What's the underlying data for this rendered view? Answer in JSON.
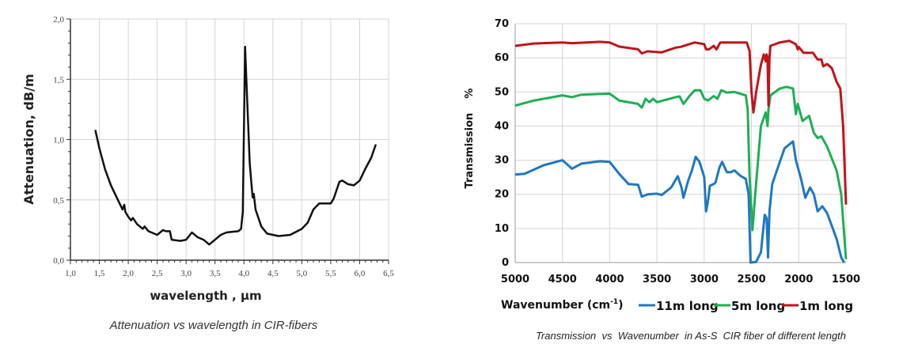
{
  "chart_data": [
    {
      "type": "line",
      "title": "",
      "caption": "Attenuation vs wavelength in CIR-fibers",
      "xlabel": "wavelength , µm",
      "ylabel": "Attenuation, dB/m",
      "xlim": [
        1.0,
        6.5
      ],
      "ylim": [
        0.0,
        2.0
      ],
      "xticks": [
        "1,0",
        "1,5",
        "2,0",
        "2,5",
        "3,0",
        "3,5",
        "4,0",
        "4,5",
        "5,0",
        "5,5",
        "6,0",
        "6,5"
      ],
      "yticks": [
        "0,0",
        "0,5",
        "1,0",
        "1,5",
        "2,0"
      ],
      "grid": true,
      "series": [
        {
          "name": "attenuation",
          "color": "#111111",
          "x": [
            1.43,
            1.5,
            1.6,
            1.7,
            1.8,
            1.9,
            1.93,
            1.95,
            2.0,
            2.05,
            2.08,
            2.15,
            2.25,
            2.28,
            2.35,
            2.5,
            2.6,
            2.65,
            2.72,
            2.75,
            2.9,
            3.0,
            3.1,
            3.2,
            3.3,
            3.4,
            3.5,
            3.6,
            3.7,
            3.9,
            3.95,
            3.98,
            4.02,
            4.05,
            4.1,
            4.15,
            4.17,
            4.2,
            4.3,
            4.4,
            4.6,
            4.8,
            5.0,
            5.1,
            5.2,
            5.3,
            5.4,
            5.5,
            5.55,
            5.65,
            5.7,
            5.8,
            5.9,
            6.0,
            6.1,
            6.2,
            6.28
          ],
          "y": [
            1.08,
            0.93,
            0.75,
            0.62,
            0.52,
            0.42,
            0.46,
            0.4,
            0.36,
            0.33,
            0.35,
            0.3,
            0.26,
            0.28,
            0.24,
            0.21,
            0.25,
            0.24,
            0.24,
            0.17,
            0.16,
            0.17,
            0.23,
            0.19,
            0.17,
            0.13,
            0.17,
            0.21,
            0.23,
            0.24,
            0.26,
            0.4,
            1.77,
            1.4,
            0.8,
            0.52,
            0.55,
            0.42,
            0.28,
            0.22,
            0.2,
            0.21,
            0.26,
            0.31,
            0.42,
            0.47,
            0.47,
            0.47,
            0.51,
            0.65,
            0.66,
            0.63,
            0.62,
            0.66,
            0.76,
            0.85,
            0.96
          ]
        }
      ]
    },
    {
      "type": "line",
      "title": "",
      "caption": "Transmission  vs  Wavenumber  in As-S  CIR fiber of different length",
      "xlabel": "Wavenumber (cm",
      "xlabel_sup": "-1",
      "xlabel_end": ")",
      "ylabel": "Transmission    %",
      "xlim": [
        5000,
        1500
      ],
      "ylim": [
        0,
        70
      ],
      "xticks": [
        "5000",
        "4500",
        "4000",
        "3500",
        "3000",
        "2500",
        "2000",
        "1500"
      ],
      "yticks": [
        "0",
        "10",
        "20",
        "30",
        "40",
        "50",
        "60",
        "70"
      ],
      "grid": true,
      "legend": "bottom",
      "series": [
        {
          "name": "11m long",
          "color": "#1f78c1",
          "x": [
            5000,
            4900,
            4700,
            4500,
            4430,
            4400,
            4300,
            4100,
            4000,
            3900,
            3800,
            3700,
            3660,
            3600,
            3500,
            3450,
            3350,
            3280,
            3240,
            3220,
            3170,
            3130,
            3090,
            3050,
            3000,
            2980,
            2960,
            2940,
            2900,
            2880,
            2840,
            2810,
            2760,
            2720,
            2680,
            2620,
            2560,
            2530,
            2510,
            2450,
            2400,
            2360,
            2340,
            2325,
            2310,
            2280,
            2200,
            2150,
            2060,
            2030,
            1980,
            1930,
            1880,
            1840,
            1800,
            1750,
            1700,
            1600,
            1550,
            1520
          ],
          "y": [
            25.8,
            26,
            28.5,
            30,
            28.3,
            27.5,
            29,
            29.7,
            29.5,
            26,
            23,
            22.8,
            19.3,
            20,
            20.2,
            19.8,
            22,
            25.3,
            22,
            19,
            24,
            27,
            31,
            29.5,
            25,
            15,
            18,
            22.5,
            23,
            23.5,
            27.8,
            29.5,
            26.5,
            26.5,
            27,
            25.5,
            24.5,
            20,
            0,
            0.2,
            3,
            14,
            13,
            1.5,
            15,
            23,
            29.5,
            33.5,
            35.5,
            30,
            25,
            19,
            22,
            20,
            15,
            16.5,
            14.5,
            7,
            1.5,
            0
          ]
        },
        {
          "name": "5m long",
          "color": "#1fae55",
          "x": [
            5000,
            4800,
            4500,
            4400,
            4300,
            4000,
            3900,
            3700,
            3660,
            3620,
            3580,
            3540,
            3500,
            3300,
            3260,
            3220,
            3150,
            3100,
            3040,
            3000,
            2960,
            2900,
            2860,
            2820,
            2760,
            2680,
            2560,
            2540,
            2520,
            2490,
            2460,
            2400,
            2350,
            2330,
            2320,
            2300,
            2200,
            2130,
            2060,
            2030,
            2010,
            1960,
            1890,
            1840,
            1800,
            1760,
            1700,
            1600,
            1550,
            1500
          ],
          "y": [
            46,
            47.5,
            49,
            48.5,
            49.2,
            49.5,
            47.5,
            46.5,
            45.4,
            48,
            47,
            48,
            47,
            48.5,
            48.7,
            46.5,
            49,
            50.5,
            50.5,
            48,
            47.5,
            48.8,
            48,
            50.5,
            49.8,
            50,
            49,
            45,
            25,
            9.5,
            20,
            40,
            44,
            40,
            45,
            49,
            51,
            51.5,
            51,
            43.5,
            46.5,
            41.5,
            43,
            38,
            36.5,
            37,
            34,
            27,
            20,
            1
          ]
        },
        {
          "name": "1m long",
          "color": "#c0141a",
          "x": [
            5000,
            4800,
            4500,
            4400,
            4100,
            4000,
            3900,
            3700,
            3660,
            3600,
            3450,
            3300,
            3250,
            3100,
            3000,
            2980,
            2950,
            2900,
            2870,
            2830,
            2550,
            2520,
            2500,
            2480,
            2450,
            2400,
            2370,
            2350,
            2340,
            2330,
            2320,
            2310,
            2300,
            2200,
            2100,
            2030,
            2010,
            2000,
            1950,
            1850,
            1800,
            1760,
            1740,
            1700,
            1650,
            1600,
            1560,
            1530,
            1500
          ],
          "y": [
            63.5,
            64.2,
            64.5,
            64.3,
            64.7,
            64.5,
            63.3,
            62.5,
            61.3,
            61.9,
            61.6,
            63,
            63.2,
            64.5,
            64,
            62.5,
            62.5,
            63.5,
            62.5,
            64.5,
            64.5,
            62,
            50,
            44,
            50,
            58,
            61,
            59,
            61,
            60,
            46,
            60,
            63.5,
            64.5,
            65,
            64,
            62.5,
            63.2,
            61.5,
            61.5,
            59.5,
            59.5,
            57.5,
            58.2,
            57,
            53,
            51,
            40,
            17
          ]
        }
      ]
    }
  ]
}
